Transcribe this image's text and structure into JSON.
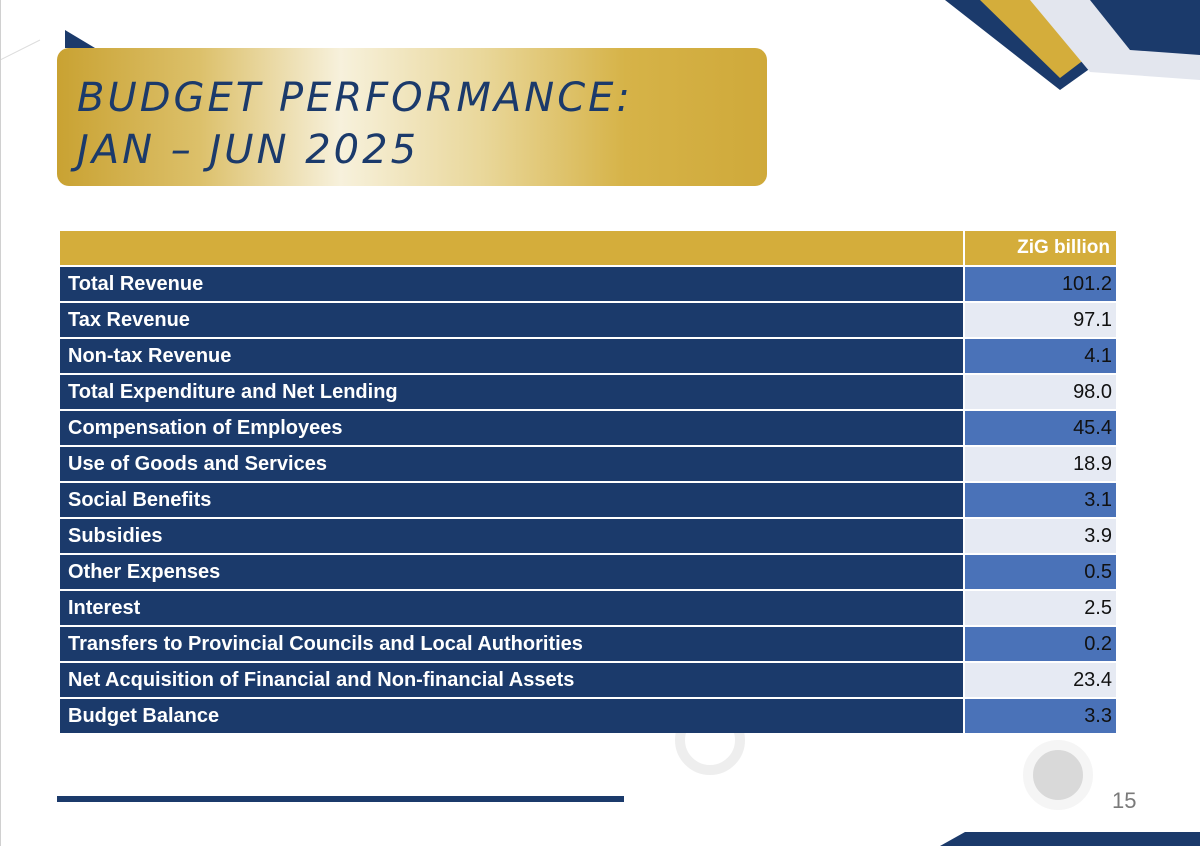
{
  "slide": {
    "title_line1": "BUDGET PERFORMANCE:",
    "title_line2": "JAN – JUN 2025",
    "page_number": "15"
  },
  "table": {
    "unit_header": "ZiG billion",
    "rows": [
      {
        "label": "Total Revenue",
        "value": "101.2"
      },
      {
        "label": "Tax Revenue",
        "value": "97.1"
      },
      {
        "label": "Non-tax Revenue",
        "value": "4.1"
      },
      {
        "label": "Total Expenditure and Net Lending",
        "value": "98.0"
      },
      {
        "label": "Compensation of Employees",
        "value": "45.4"
      },
      {
        "label": "Use of Goods and Services",
        "value": "18.9"
      },
      {
        "label": "Social Benefits",
        "value": "3.1"
      },
      {
        "label": "Subsidies",
        "value": "3.9"
      },
      {
        "label": "Other Expenses",
        "value": "0.5"
      },
      {
        "label": "Interest",
        "value": "2.5"
      },
      {
        "label": "Transfers to Provincial Councils and Local Authorities",
        "value": "0.2"
      },
      {
        "label": "Net Acquisition of Financial and Non-financial Assets",
        "value": "23.4"
      },
      {
        "label": "Budget Balance",
        "value": "3.3"
      }
    ]
  },
  "colors": {
    "navy": "#1b3a6b",
    "gold": "#d4ad3b",
    "value_blue": "#4a72b8",
    "value_light": "#e6eaf3"
  }
}
